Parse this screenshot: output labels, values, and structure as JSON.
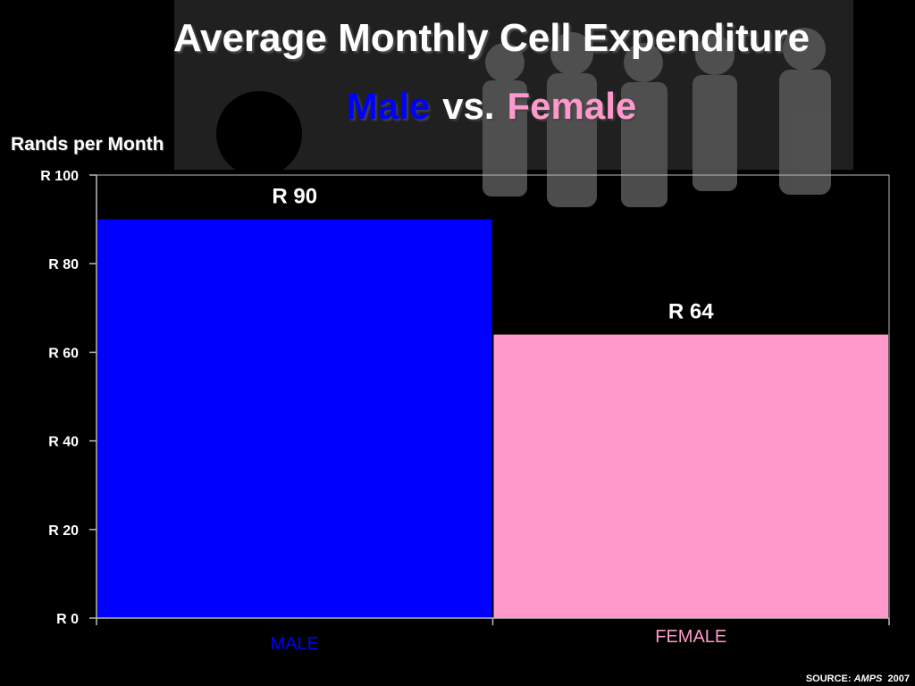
{
  "header": {
    "title": "Average Monthly Cell Expenditure",
    "subtitle_left": "Male",
    "subtitle_mid": "vs.",
    "subtitle_right": "Female"
  },
  "footer": {
    "source_prefix": "SOURCE:",
    "source_name": "AMPS",
    "source_year": "2007"
  },
  "colors": {
    "male": "#0000ff",
    "female": "#ff99cc",
    "male_title": "#0000ff",
    "female_title": "#ff99cc"
  },
  "chart_data": {
    "type": "bar",
    "title": "Average Monthly Cell Expenditure",
    "subtitle": "Male vs. Female",
    "ylabel": "Rands per Month",
    "xlabel": "",
    "categories": [
      "MALE",
      "FEMALE"
    ],
    "values": [
      90,
      64
    ],
    "data_labels": [
      "R 90",
      "R 64"
    ],
    "ylim": [
      0,
      100
    ],
    "yticks": [
      0,
      20,
      40,
      60,
      80,
      100
    ],
    "ytick_labels": [
      "R 0",
      "R 20",
      "R 40",
      "R 60",
      "R 80",
      "R 100"
    ],
    "grid": false,
    "legend": "none"
  }
}
